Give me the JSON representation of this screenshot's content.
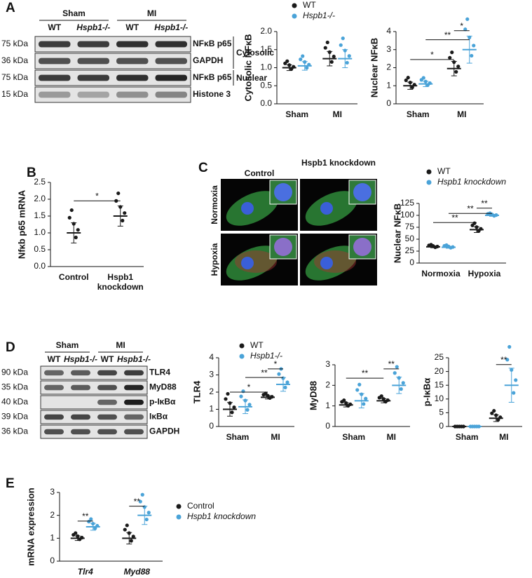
{
  "panels": [
    "A",
    "B",
    "C",
    "D",
    "E"
  ],
  "blots": [
    {
      "groups": [
        "Sham",
        "MI"
      ],
      "lanes": [
        "WT",
        "Hspb1-/-",
        "WT",
        "Hspb1-/-"
      ],
      "rows": [
        {
          "size": "75 kDa",
          "label": "NFκB p65"
        },
        {
          "size": "36 kDa",
          "label": "GAPDH"
        },
        {
          "size": "75 kDa",
          "label": "NFκB p65"
        },
        {
          "size": "15 kDa",
          "label": "Histone 3"
        }
      ],
      "fractions": [
        "Cytosolic",
        "Nuclear"
      ]
    },
    {
      "groups": [
        "Sham",
        "MI"
      ],
      "lanes": [
        "WT",
        "Hspb1-/-",
        "WT",
        "Hspb1-/-"
      ],
      "rows": [
        {
          "size": "90 kDa",
          "label": "TLR4"
        },
        {
          "size": "35 kDa",
          "label": "MyD88"
        },
        {
          "size": "40 kDa",
          "label": "p-IκBα"
        },
        {
          "size": "39 kDa",
          "label": "IκBα"
        },
        {
          "size": "36 kDa",
          "label": "GAPDH"
        }
      ]
    }
  ],
  "micrographs": {
    "columns": [
      "Control",
      "Hspb1 knockdown"
    ],
    "rows": [
      "Normoxia",
      "Hypoxia"
    ]
  },
  "chart_data": [
    {
      "type": "dot",
      "y_label": "Cytosolic NFκB",
      "categories": [
        "Sham",
        "MI"
      ],
      "legend": true,
      "series": [
        {
          "name": "WT",
          "color": "#1a1a1a",
          "values": [
            1.0,
            1.25
          ],
          "errors": [
            0.08,
            0.2
          ]
        },
        {
          "name": "Hspb1-/-",
          "color": "#4aa3d8",
          "values": [
            1.05,
            1.25
          ],
          "errors": [
            0.12,
            0.25
          ]
        }
      ],
      "ylim": [
        0,
        2
      ],
      "yticks": [
        {
          "value": 0,
          "label": "0.0"
        },
        {
          "value": 0.5,
          "label": "0.5"
        },
        {
          "value": 1,
          "label": "1.0"
        },
        {
          "value": 1.5,
          "label": "1.5"
        },
        {
          "value": 2,
          "label": "2.0"
        }
      ]
    },
    {
      "type": "dot",
      "y_label": "Nuclear NFκB",
      "categories": [
        "Sham",
        "MI"
      ],
      "series": [
        {
          "name": "WT",
          "color": "#1a1a1a",
          "values": [
            1.0,
            1.95
          ],
          "errors": [
            0.2,
            0.4
          ]
        },
        {
          "name": "Hspb1-/-",
          "color": "#4aa3d8",
          "values": [
            1.1,
            3.0
          ],
          "errors": [
            0.15,
            0.75
          ]
        }
      ],
      "ylim": [
        0,
        4
      ],
      "yticks": [
        0,
        1,
        2,
        3,
        4
      ],
      "annotations": [
        {
          "text": "*",
          "y": 2.45
        },
        {
          "text": "**",
          "y": 3.55
        },
        {
          "text": "*",
          "y": 4.05
        }
      ]
    },
    {
      "type": "dot",
      "y_label": "Nfκb p65 mRNA",
      "categories": [
        "Control",
        "Hspb1 knockdown"
      ],
      "values": [
        1.0,
        1.5
      ],
      "errors": [
        0.3,
        0.3
      ],
      "color": "#1a1a1a",
      "ylim": [
        0,
        2.5
      ],
      "yticks": [
        {
          "value": 0,
          "label": "0.0"
        },
        {
          "value": 0.5,
          "label": "0.5"
        },
        {
          "value": 1,
          "label": "1.0"
        },
        {
          "value": 1.5,
          "label": "1.5"
        },
        {
          "value": 2,
          "label": "2.0"
        },
        {
          "value": 2.5,
          "label": "2.5"
        }
      ],
      "annotations": [
        {
          "text": "*",
          "y": 1.95
        }
      ]
    },
    {
      "type": "dot",
      "y_label": "Nuclear NFκB",
      "categories": [
        "Normoxia",
        "Hypoxia"
      ],
      "legend": true,
      "series": [
        {
          "name": "WT",
          "color": "#1a1a1a",
          "values": [
            34,
            70
          ],
          "errors": [
            2,
            6
          ]
        },
        {
          "name": "Hspb1 knockdown",
          "color": "#4aa3d8",
          "values": [
            33,
            100
          ],
          "errors": [
            2,
            2
          ]
        }
      ],
      "ylim": [
        0,
        125
      ],
      "yticks": [
        0,
        25,
        50,
        75,
        100,
        125
      ],
      "annotations": [
        {
          "text": "**",
          "y": 85
        },
        {
          "text": "**",
          "y": 104
        },
        {
          "text": "**",
          "y": 115
        }
      ]
    },
    {
      "type": "dot",
      "y_label": "TLR4",
      "categories": [
        "Sham",
        "MI"
      ],
      "legend": true,
      "series": [
        {
          "name": "WT",
          "color": "#1a1a1a",
          "values": [
            1.0,
            1.7
          ],
          "errors": [
            0.4,
            0.1
          ]
        },
        {
          "name": "Hspb1-/-",
          "color": "#4aa3d8",
          "values": [
            1.15,
            2.45
          ],
          "errors": [
            0.4,
            0.4
          ]
        }
      ],
      "ylim": [
        0,
        4
      ],
      "yticks": [
        0,
        1,
        2,
        3,
        4
      ],
      "annotations": [
        {
          "text": "*",
          "y": 2.0
        },
        {
          "text": "**",
          "y": 2.85
        },
        {
          "text": "*",
          "y": 3.35
        }
      ]
    },
    {
      "type": "dot",
      "y_label": "MyD88",
      "categories": [
        "Sham",
        "MI"
      ],
      "series": [
        {
          "name": "WT",
          "color": "#1a1a1a",
          "values": [
            1.05,
            1.25
          ],
          "errors": [
            0.1,
            0.1
          ]
        },
        {
          "name": "Hspb1-/-",
          "color": "#4aa3d8",
          "values": [
            1.25,
            2.0
          ],
          "errors": [
            0.35,
            0.4
          ]
        }
      ],
      "ylim": [
        0,
        3
      ],
      "yticks": [
        0,
        1,
        2,
        3
      ],
      "annotations": [
        {
          "text": "**",
          "y": 2.35
        },
        {
          "text": "**",
          "y": 2.8
        }
      ]
    },
    {
      "type": "dot",
      "y_label": "p-IκBα",
      "categories": [
        "Sham",
        "MI"
      ],
      "series": [
        {
          "name": "WT",
          "color": "#1a1a1a",
          "values": [
            0,
            3.0
          ],
          "errors": [
            0,
            1.2
          ]
        },
        {
          "name": "Hspb1-/-",
          "color": "#4aa3d8",
          "values": [
            0,
            15.0
          ],
          "errors": [
            0,
            6.2
          ]
        }
      ],
      "ylim": [
        0,
        25
      ],
      "yticks": [
        0,
        5,
        10,
        15,
        20,
        25
      ],
      "annotations": [
        {
          "text": "**",
          "y": 22.5
        }
      ]
    },
    {
      "type": "dot",
      "y_label": "mRNA expression",
      "categories": [
        "Tlr4",
        "Myd88"
      ],
      "legend": true,
      "series": [
        {
          "name": "Control",
          "color": "#1a1a1a",
          "values": [
            1.0,
            1.0
          ],
          "errors": [
            0.1,
            0.25
          ]
        },
        {
          "name": "Hspb1 knockdown",
          "color": "#4aa3d8",
          "values": [
            1.5,
            2.0
          ],
          "errors": [
            0.15,
            0.4
          ]
        }
      ],
      "ylim": [
        0,
        3
      ],
      "yticks": [
        0,
        1,
        2,
        3
      ],
      "annotations": [
        {
          "text": "**",
          "y": 1.75
        },
        {
          "text": "**",
          "y": 2.4
        }
      ]
    }
  ]
}
